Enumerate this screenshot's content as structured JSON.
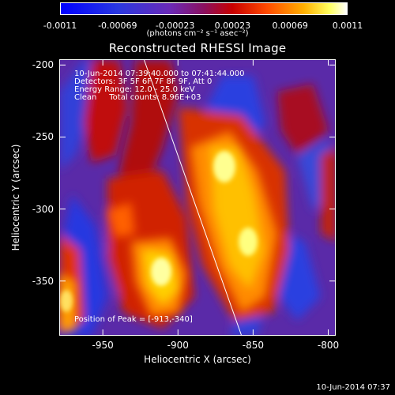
{
  "colorbar": {
    "ticks": [
      "-0.0011",
      "-0.00069",
      "-0.00023",
      "0.00023",
      "0.00069",
      "0.0011"
    ],
    "unit": "(photons cm⁻² s⁻¹ asec⁻²)",
    "min": -0.0011,
    "max": 0.0011
  },
  "chart_data": {
    "type": "heatmap",
    "title": "Reconstructed RHESSI Image",
    "xlabel": "Heliocentric X (arcsec)",
    "ylabel": "Heliocentric Y (arcsec)",
    "xlim": [
      -979,
      -795
    ],
    "ylim": [
      -388,
      -196
    ],
    "x_ticks": [
      "-950",
      "-900",
      "-850",
      "-800"
    ],
    "y_ticks": [
      "-200",
      "-250",
      "-300",
      "-350"
    ],
    "x_tick_values": [
      -950,
      -900,
      -850,
      -800
    ],
    "y_tick_values": [
      -200,
      -250,
      -300,
      -350
    ],
    "annotations": [
      "10-Jun-2014 07:39:40.000 to 07:41:44.000",
      "Detectors: 3F 5F 6F 7F 8F 9F, Att 0",
      "Energy Range: 12.0 - 25.0 keV",
      "Clean     Total counts: 8.96E+03"
    ],
    "peak_label": "Position of Peak = [-913,-340]",
    "peak": [
      -913,
      -340
    ],
    "limb_line": [
      [
        -923,
        -196
      ],
      [
        -858,
        -388
      ]
    ]
  },
  "timestamp": "10-Jun-2014 07:37"
}
